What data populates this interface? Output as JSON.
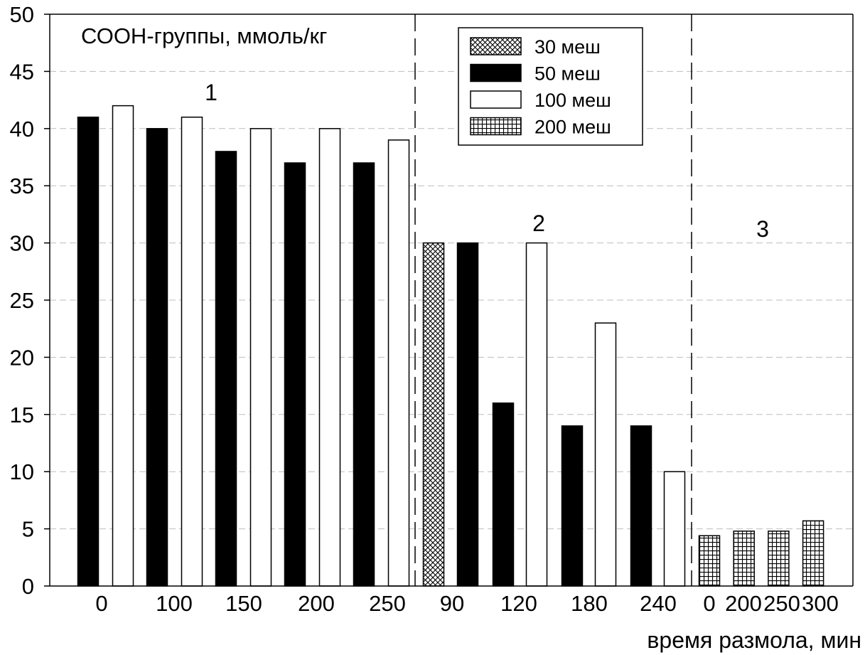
{
  "chart_data": {
    "type": "bar",
    "title": "СООН-группы, ммоль/кг",
    "xlabel": "время размола, мин",
    "ylabel": "",
    "ylim": [
      0,
      50
    ],
    "yticks": [
      0,
      5,
      10,
      15,
      20,
      25,
      30,
      35,
      40,
      45,
      50
    ],
    "grid": true,
    "legend_position": "top-center",
    "legend": [
      {
        "name": "30 меш",
        "pattern": "crosshatch"
      },
      {
        "name": "50 меш",
        "pattern": "solid-black"
      },
      {
        "name": "100 меш",
        "pattern": "white"
      },
      {
        "name": "200 меш",
        "pattern": "grid"
      }
    ],
    "groups": [
      {
        "label": "1",
        "categories": [
          "0",
          "100",
          "150",
          "200",
          "250"
        ],
        "bars": [
          {
            "category": "0",
            "series": "50 меш",
            "value": 41
          },
          {
            "category": "0",
            "series": "100 меш",
            "value": 42
          },
          {
            "category": "100",
            "series": "50 меш",
            "value": 40
          },
          {
            "category": "100",
            "series": "100 меш",
            "value": 41
          },
          {
            "category": "150",
            "series": "50 меш",
            "value": 38
          },
          {
            "category": "150",
            "series": "100 меш",
            "value": 40
          },
          {
            "category": "200",
            "series": "50 меш",
            "value": 37
          },
          {
            "category": "200",
            "series": "100 меш",
            "value": 40
          },
          {
            "category": "250",
            "series": "50 меш",
            "value": 37
          },
          {
            "category": "250",
            "series": "100 меш",
            "value": 39
          }
        ]
      },
      {
        "label": "2",
        "categories": [
          "90",
          "120",
          "180",
          "240"
        ],
        "bars": [
          {
            "category": "90",
            "series": "30 меш",
            "value": 30
          },
          {
            "category": "90",
            "series": "50 меш",
            "value": 30
          },
          {
            "category": "120",
            "series": "50 меш",
            "value": 16
          },
          {
            "category": "120",
            "series": "100 меш",
            "value": 30
          },
          {
            "category": "180",
            "series": "50 меш",
            "value": 14
          },
          {
            "category": "180",
            "series": "100 меш",
            "value": 23
          },
          {
            "category": "240",
            "series": "50 меш",
            "value": 14
          },
          {
            "category": "240",
            "series": "100 меш",
            "value": 10
          }
        ]
      },
      {
        "label": "3",
        "categories": [
          "0",
          "200",
          "250",
          "300"
        ],
        "bars": [
          {
            "category": "0",
            "series": "200 меш",
            "value": 4.4
          },
          {
            "category": "200",
            "series": "200 меш",
            "value": 4.8
          },
          {
            "category": "250",
            "series": "200 меш",
            "value": 4.8
          },
          {
            "category": "300",
            "series": "200 меш",
            "value": 5.7
          }
        ]
      }
    ]
  }
}
